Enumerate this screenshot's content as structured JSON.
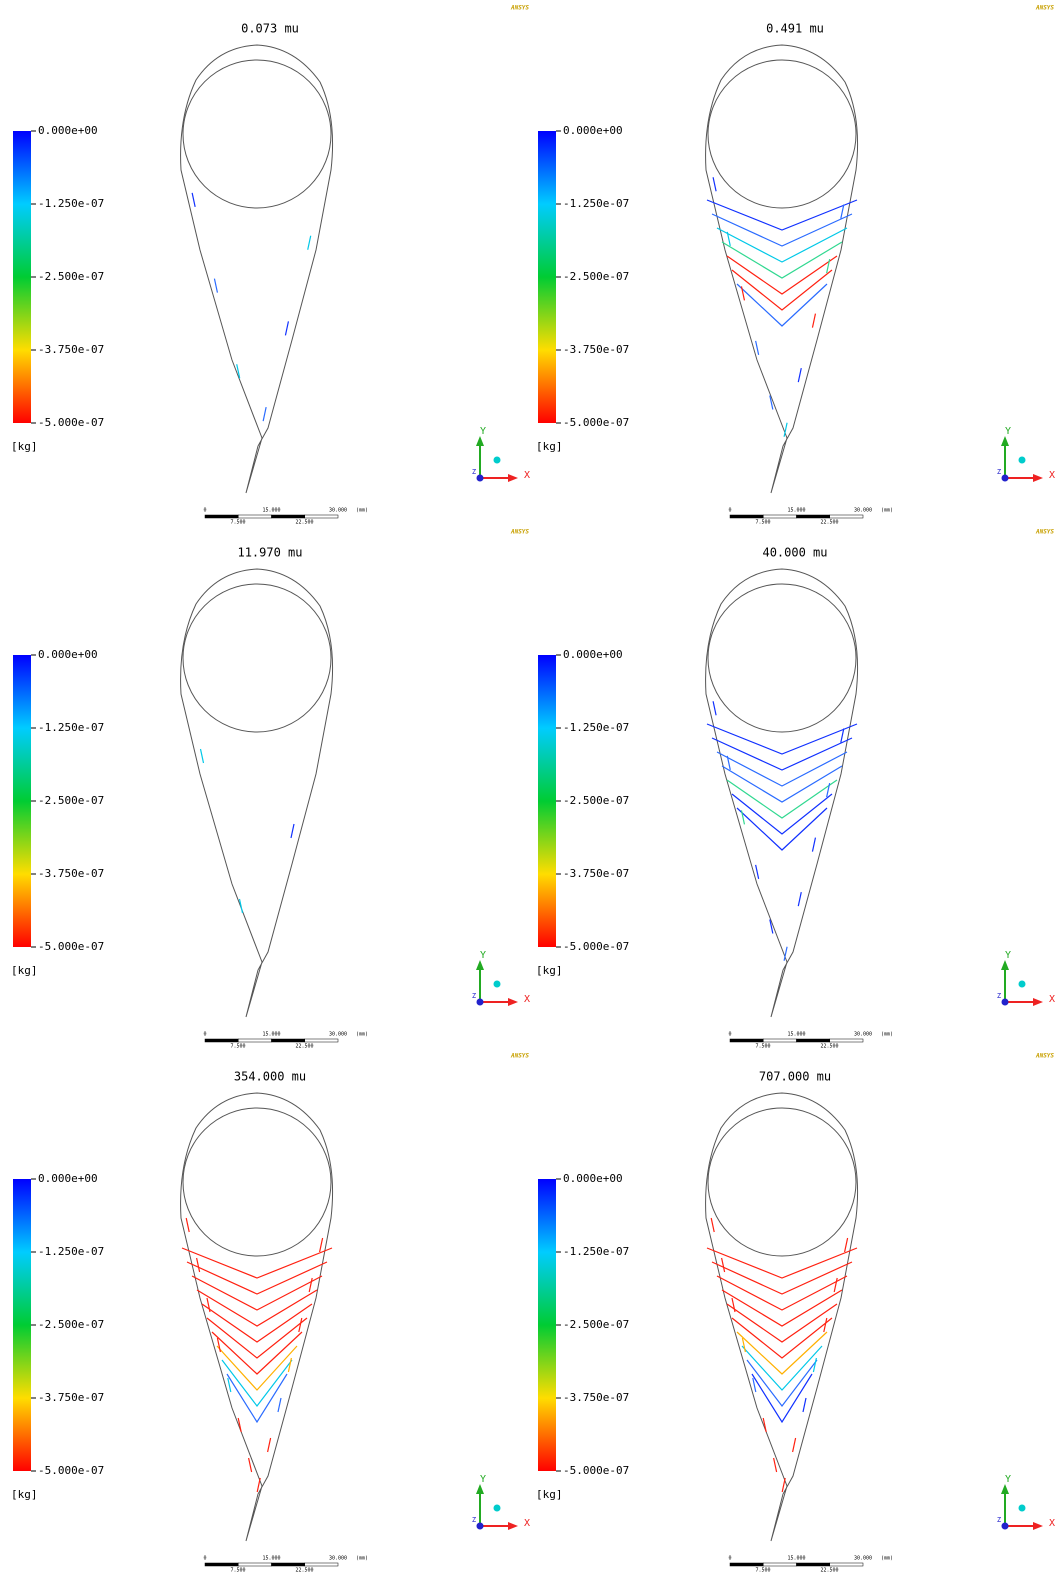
{
  "panels": [
    {
      "title": "0.073 mu"
    },
    {
      "title": "0.491 mu"
    },
    {
      "title": "11.970 mu"
    },
    {
      "title": "40.000 mu"
    },
    {
      "title": "354.000 mu"
    },
    {
      "title": "707.000 mu"
    }
  ],
  "legend": {
    "labels": [
      "0.000e+00",
      "-1.250e-07",
      "-2.500e-07",
      "-3.750e-07",
      "-5.000e-07"
    ],
    "unit": "[kg]"
  },
  "scale_bar": {
    "top_labels": [
      "0",
      "15.000",
      "30.000"
    ],
    "bottom_labels": [
      "7.500",
      "22.500"
    ],
    "unit": "(mm)"
  },
  "triad": {
    "x": "X",
    "y": "Y",
    "z": "Z"
  },
  "logo": "ANSYS"
}
